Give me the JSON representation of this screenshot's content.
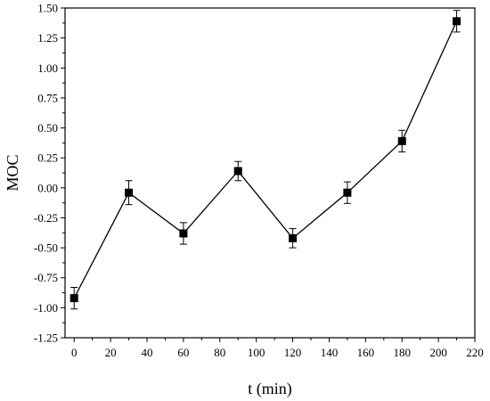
{
  "chart_data": {
    "type": "line",
    "xlabel": "t (min)",
    "ylabel": "MOC",
    "xlim": [
      -5,
      220
    ],
    "ylim": [
      -1.25,
      1.5
    ],
    "x_ticks": [
      0,
      20,
      40,
      60,
      80,
      100,
      120,
      140,
      160,
      180,
      200,
      220
    ],
    "x_tick_labels": [
      "0",
      "20",
      "40",
      "60",
      "80",
      "100",
      "120",
      "140",
      "160",
      "180",
      "200",
      "220"
    ],
    "y_ticks": [
      -1.25,
      -1.0,
      -0.75,
      -0.5,
      -0.25,
      0.0,
      0.25,
      0.5,
      0.75,
      1.0,
      1.25,
      1.5
    ],
    "y_tick_labels": [
      "-1.25",
      "-1.00",
      "-0.75",
      "-0.50",
      "-0.25",
      "0.00",
      "0.25",
      "0.50",
      "0.75",
      "1.00",
      "1.25",
      "1.50"
    ],
    "grid": false,
    "marker": "square",
    "line_color": "#000000",
    "series": [
      {
        "x": [
          0,
          30,
          60,
          90,
          120,
          150,
          180,
          210
        ],
        "y": [
          -0.92,
          -0.04,
          -0.38,
          0.14,
          -0.42,
          -0.04,
          0.39,
          1.39
        ],
        "error": [
          0.09,
          0.1,
          0.09,
          0.08,
          0.08,
          0.09,
          0.09,
          0.09
        ]
      }
    ]
  }
}
